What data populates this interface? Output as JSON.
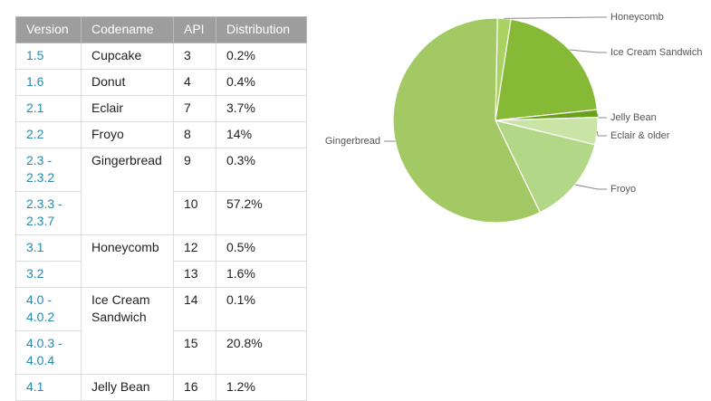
{
  "table": {
    "header": [
      "Version",
      "Codename",
      "API",
      "Distribution"
    ],
    "groups": [
      {
        "codename": "Cupcake",
        "rows": [
          {
            "version": "1.5",
            "api": 3,
            "distribution": "0.2%"
          }
        ]
      },
      {
        "codename": "Donut",
        "rows": [
          {
            "version": "1.6",
            "api": 4,
            "distribution": "0.4%"
          }
        ]
      },
      {
        "codename": "Eclair",
        "rows": [
          {
            "version": "2.1",
            "api": 7,
            "distribution": "3.7%"
          }
        ]
      },
      {
        "codename": "Froyo",
        "rows": [
          {
            "version": "2.2",
            "api": 8,
            "distribution": "14%"
          }
        ]
      },
      {
        "codename": "Gingerbread",
        "rows": [
          {
            "version": "2.3 - 2.3.2",
            "api": 9,
            "distribution": "0.3%"
          },
          {
            "version": "2.3.3 - 2.3.7",
            "api": 10,
            "distribution": "57.2%"
          }
        ]
      },
      {
        "codename": "Honeycomb",
        "rows": [
          {
            "version": "3.1",
            "api": 12,
            "distribution": "0.5%"
          },
          {
            "version": "3.2",
            "api": 13,
            "distribution": "1.6%"
          }
        ]
      },
      {
        "codename": "Ice Cream Sandwich",
        "rows": [
          {
            "version": "4.0 - 4.0.2",
            "api": 14,
            "distribution": "0.1%"
          },
          {
            "version": "4.0.3 - 4.0.4",
            "api": 15,
            "distribution": "20.8%"
          }
        ]
      },
      {
        "codename": "Jelly Bean",
        "rows": [
          {
            "version": "4.1",
            "api": 16,
            "distribution": "1.2%"
          }
        ]
      }
    ]
  },
  "chart_data": {
    "type": "pie",
    "categories": [
      "Honeycomb",
      "Ice Cream Sandwich",
      "Jelly Bean",
      "Eclair & older",
      "Froyo",
      "Gingerbread"
    ],
    "values": [
      2.1,
      20.9,
      1.2,
      4.3,
      14,
      57.5
    ],
    "colors": [
      "#a9d262",
      "#86b935",
      "#6aa01e",
      "#c9e4a4",
      "#b2d887",
      "#a3c965"
    ]
  }
}
